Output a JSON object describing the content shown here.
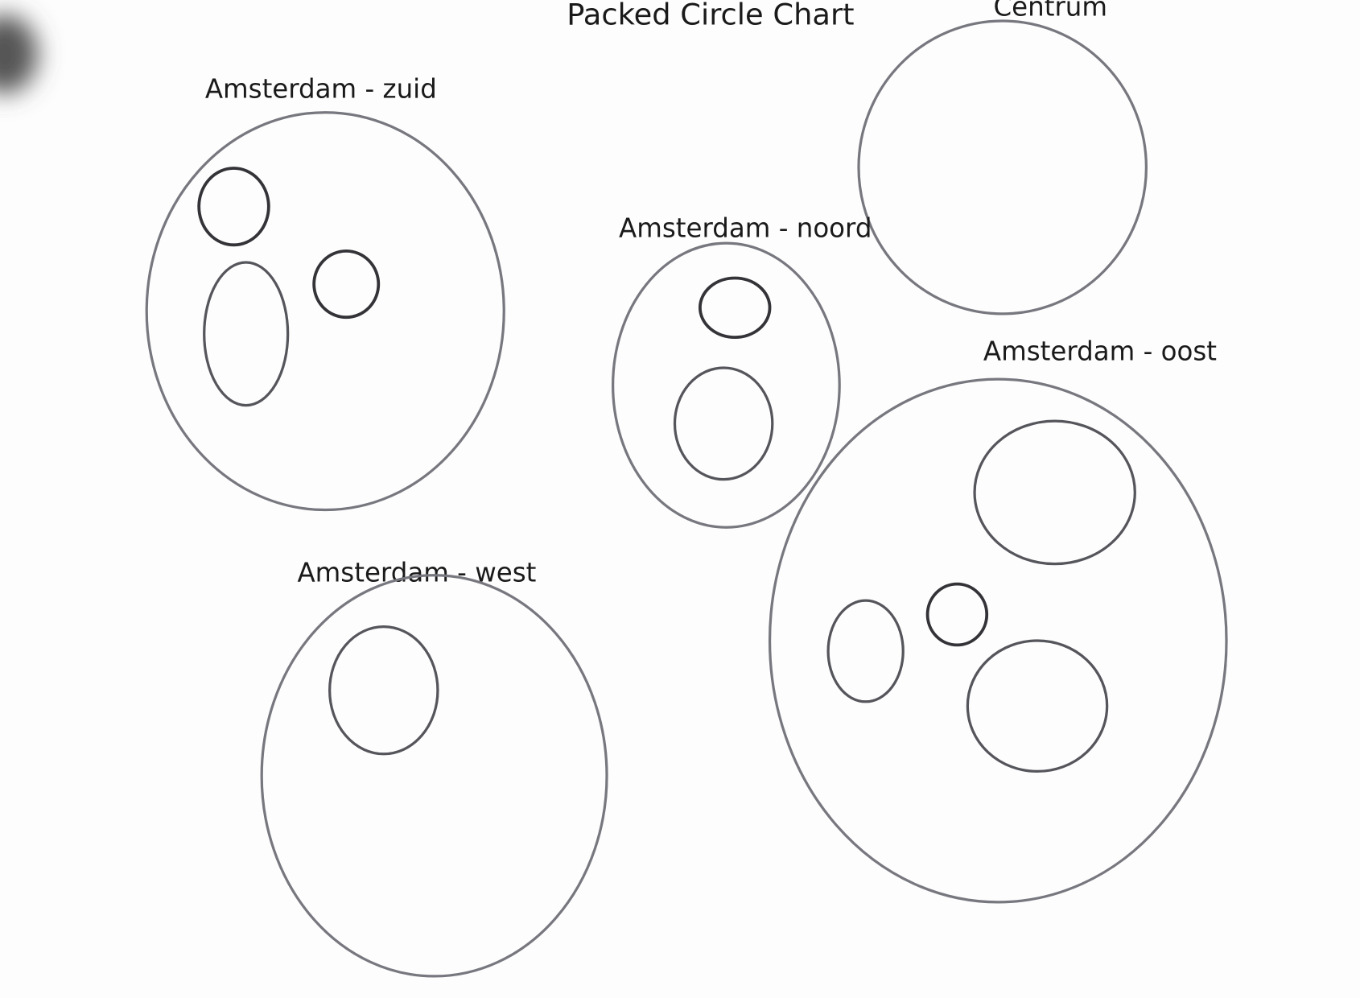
{
  "title": "Packed Circle Chart",
  "nodes": [
    {
      "label": "Centrum"
    },
    {
      "label": "Amsterdam - zuid"
    },
    {
      "label": "Amsterdam - noord"
    },
    {
      "label": "Amsterdam - oost"
    },
    {
      "label": "Amsterdam - west"
    }
  ]
}
